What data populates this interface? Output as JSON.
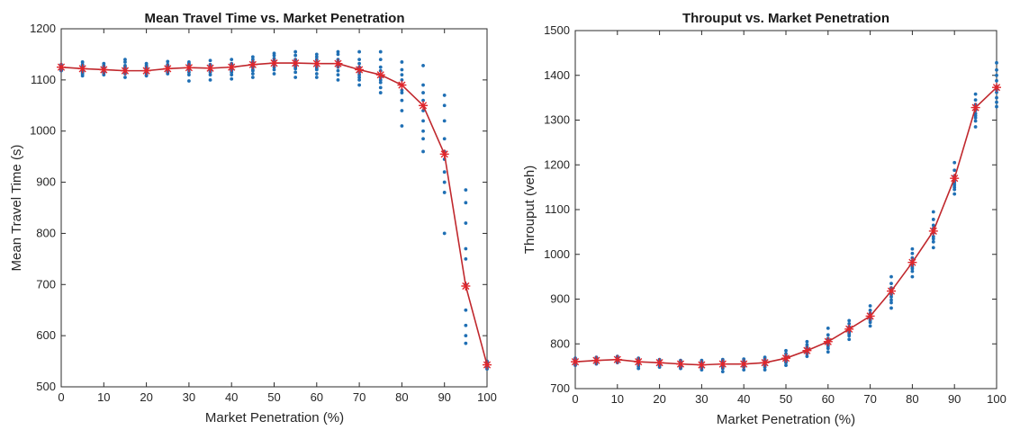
{
  "chart_data": [
    {
      "type": "scatter",
      "title": "Mean Travel Time vs. Market Penetration",
      "xlabel": "Market Penetration (%)",
      "ylabel": "Mean Travel Time (s)",
      "xlim": [
        0,
        100
      ],
      "ylim": [
        500,
        1200
      ],
      "xticks": [
        "0",
        "10",
        "20",
        "30",
        "40",
        "50",
        "60",
        "70",
        "80",
        "90",
        "100"
      ],
      "yticks": [
        "500",
        "600",
        "700",
        "800",
        "900",
        "1000",
        "1100",
        "1200"
      ],
      "grid": false,
      "colors": {
        "points": "#1f6fb4",
        "mean_line": "#c0282d",
        "mean_marker": "#e0262c"
      },
      "mean": {
        "x": [
          0,
          5,
          10,
          15,
          20,
          25,
          30,
          35,
          40,
          45,
          50,
          55,
          60,
          65,
          70,
          75,
          80,
          85,
          90,
          95,
          100
        ],
        "y": [
          1125,
          1122,
          1120,
          1118,
          1118,
          1122,
          1124,
          1123,
          1125,
          1130,
          1133,
          1133,
          1132,
          1132,
          1120,
          1110,
          1090,
          1050,
          955,
          697,
          543
        ]
      },
      "samples": [
        {
          "x": 0,
          "y": [
            1118,
            1125,
            1130,
            1122,
            1128,
            1120,
            1124,
            1127,
            1119,
            1126
          ]
        },
        {
          "x": 5,
          "y": [
            1108,
            1115,
            1128,
            1135,
            1118,
            1122,
            1125,
            1112,
            1130,
            1120
          ]
        },
        {
          "x": 10,
          "y": [
            1110,
            1115,
            1125,
            1132,
            1120,
            1118,
            1122,
            1128,
            1114,
            1124
          ]
        },
        {
          "x": 15,
          "y": [
            1105,
            1112,
            1125,
            1135,
            1140,
            1118,
            1120,
            1116,
            1122,
            1128
          ]
        },
        {
          "x": 20,
          "y": [
            1108,
            1114,
            1125,
            1132,
            1120,
            1116,
            1118,
            1122,
            1110,
            1128
          ]
        },
        {
          "x": 25,
          "y": [
            1112,
            1118,
            1130,
            1136,
            1122,
            1120,
            1125,
            1115,
            1128,
            1124
          ]
        },
        {
          "x": 30,
          "y": [
            1098,
            1110,
            1120,
            1135,
            1130,
            1125,
            1128,
            1115,
            1122,
            1132
          ]
        },
        {
          "x": 35,
          "y": [
            1100,
            1110,
            1118,
            1128,
            1138,
            1125,
            1120,
            1115,
            1130,
            1122
          ]
        },
        {
          "x": 40,
          "y": [
            1102,
            1110,
            1118,
            1130,
            1140,
            1126,
            1122,
            1115,
            1132,
            1120
          ]
        },
        {
          "x": 45,
          "y": [
            1105,
            1112,
            1120,
            1135,
            1145,
            1130,
            1128,
            1118,
            1140,
            1125
          ]
        },
        {
          "x": 50,
          "y": [
            1112,
            1120,
            1130,
            1142,
            1152,
            1135,
            1138,
            1125,
            1148,
            1130
          ]
        },
        {
          "x": 55,
          "y": [
            1105,
            1115,
            1125,
            1140,
            1155,
            1135,
            1132,
            1128,
            1148,
            1122
          ]
        },
        {
          "x": 60,
          "y": [
            1105,
            1112,
            1122,
            1140,
            1150,
            1135,
            1130,
            1125,
            1145,
            1120
          ]
        },
        {
          "x": 65,
          "y": [
            1100,
            1110,
            1125,
            1140,
            1155,
            1132,
            1135,
            1128,
            1150,
            1118
          ]
        },
        {
          "x": 70,
          "y": [
            1090,
            1100,
            1110,
            1125,
            1140,
            1155,
            1115,
            1120,
            1132,
            1105
          ]
        },
        {
          "x": 75,
          "y": [
            1075,
            1085,
            1095,
            1110,
            1125,
            1140,
            1155,
            1105,
            1118,
            1100
          ]
        },
        {
          "x": 80,
          "y": [
            1010,
            1040,
            1060,
            1075,
            1090,
            1110,
            1120,
            1135,
            1080,
            1100
          ]
        },
        {
          "x": 85,
          "y": [
            960,
            985,
            1000,
            1020,
            1040,
            1060,
            1075,
            1090,
            1128,
            1050
          ]
        },
        {
          "x": 90,
          "y": [
            800,
            880,
            900,
            920,
            945,
            960,
            985,
            1020,
            1050,
            1070
          ]
        },
        {
          "x": 95,
          "y": [
            585,
            600,
            620,
            650,
            700,
            750,
            770,
            820,
            860,
            885
          ]
        },
        {
          "x": 100,
          "y": [
            535,
            540,
            545,
            550,
            542,
            538,
            548,
            544,
            546,
            541
          ]
        }
      ]
    },
    {
      "type": "scatter",
      "title": "Throuput vs. Market Penetration",
      "xlabel": "Market Penetration (%)",
      "ylabel": "Throuput (veh)",
      "xlim": [
        0,
        100
      ],
      "ylim": [
        700,
        1500
      ],
      "xticks": [
        "0",
        "10",
        "20",
        "30",
        "40",
        "50",
        "60",
        "70",
        "80",
        "90",
        "100"
      ],
      "yticks": [
        "700",
        "800",
        "900",
        "1000",
        "1100",
        "1200",
        "1300",
        "1400",
        "1500"
      ],
      "grid": false,
      "colors": {
        "points": "#1f6fb4",
        "mean_line": "#c0282d",
        "mean_marker": "#e0262c"
      },
      "mean": {
        "x": [
          0,
          5,
          10,
          15,
          20,
          25,
          30,
          35,
          40,
          45,
          50,
          55,
          60,
          65,
          70,
          75,
          80,
          85,
          90,
          95,
          100
        ],
        "y": [
          760,
          763,
          765,
          760,
          758,
          755,
          753,
          755,
          755,
          758,
          768,
          785,
          805,
          833,
          862,
          918,
          982,
          1052,
          1170,
          1328,
          1373
        ]
      },
      "samples": [
        {
          "x": 0,
          "y": [
            752,
            755,
            758,
            760,
            762,
            765,
            768,
            757,
            763,
            760
          ]
        },
        {
          "x": 5,
          "y": [
            755,
            758,
            760,
            763,
            765,
            768,
            770,
            762,
            766,
            759
          ]
        },
        {
          "x": 10,
          "y": [
            758,
            760,
            763,
            765,
            768,
            770,
            772,
            762,
            767,
            764
          ]
        },
        {
          "x": 15,
          "y": [
            745,
            750,
            755,
            760,
            763,
            765,
            768,
            758,
            762,
            756
          ]
        },
        {
          "x": 20,
          "y": [
            748,
            752,
            755,
            758,
            760,
            763,
            765,
            756,
            761,
            754
          ]
        },
        {
          "x": 25,
          "y": [
            745,
            748,
            752,
            755,
            758,
            760,
            763,
            750,
            757,
            753
          ]
        },
        {
          "x": 30,
          "y": [
            742,
            746,
            750,
            753,
            756,
            760,
            763,
            748,
            755,
            752
          ]
        },
        {
          "x": 35,
          "y": [
            738,
            745,
            750,
            755,
            758,
            762,
            765,
            748,
            756,
            752
          ]
        },
        {
          "x": 40,
          "y": [
            742,
            748,
            752,
            755,
            758,
            762,
            766,
            750,
            757,
            753
          ]
        },
        {
          "x": 45,
          "y": [
            742,
            748,
            755,
            758,
            762,
            766,
            770,
            752,
            760,
            756
          ]
        },
        {
          "x": 50,
          "y": [
            752,
            758,
            763,
            768,
            772,
            778,
            785,
            760,
            770,
            766
          ]
        },
        {
          "x": 55,
          "y": [
            772,
            778,
            783,
            788,
            793,
            798,
            805,
            780,
            790,
            785
          ]
        },
        {
          "x": 60,
          "y": [
            782,
            790,
            798,
            805,
            812,
            820,
            835,
            795,
            808,
            802
          ]
        },
        {
          "x": 65,
          "y": [
            810,
            818,
            825,
            832,
            838,
            845,
            852,
            822,
            835,
            828
          ]
        },
        {
          "x": 70,
          "y": [
            840,
            848,
            855,
            862,
            868,
            875,
            885,
            852,
            865,
            858
          ]
        },
        {
          "x": 75,
          "y": [
            880,
            892,
            905,
            915,
            925,
            935,
            950,
            898,
            920,
            910
          ]
        },
        {
          "x": 80,
          "y": [
            950,
            962,
            972,
            982,
            992,
            1002,
            1012,
            968,
            985,
            978
          ]
        },
        {
          "x": 85,
          "y": [
            1015,
            1028,
            1040,
            1052,
            1065,
            1078,
            1095,
            1035,
            1058,
            1048
          ]
        },
        {
          "x": 90,
          "y": [
            1135,
            1145,
            1155,
            1165,
            1175,
            1188,
            1205,
            1150,
            1170,
            1160
          ]
        },
        {
          "x": 95,
          "y": [
            1285,
            1298,
            1310,
            1322,
            1335,
            1345,
            1358,
            1305,
            1328,
            1315
          ]
        },
        {
          "x": 100,
          "y": [
            1330,
            1340,
            1350,
            1362,
            1375,
            1388,
            1400,
            1412,
            1428,
            1368
          ]
        }
      ]
    }
  ]
}
